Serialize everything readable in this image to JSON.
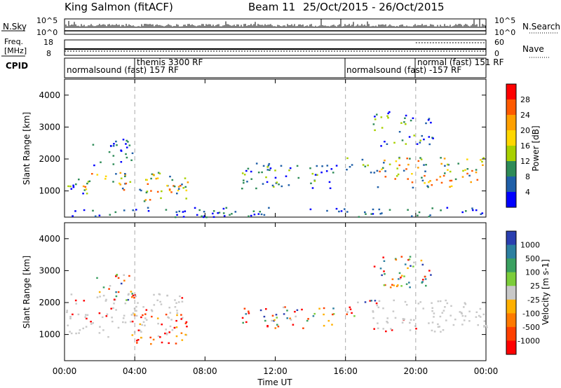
{
  "header": {
    "station": "King Salmon (fitACF)",
    "beam": "Beam 11",
    "dates": "25/Oct/2015 - 26/Oct/2015"
  },
  "noise_panel": {
    "left_label": "N.Sky",
    "right_label": "N.Search",
    "ticks_left": [
      "10^5",
      "10^0"
    ],
    "ticks_right": [
      "10^5",
      "10^0"
    ]
  },
  "freq_panel": {
    "left_label_1": "Freq.",
    "left_label_2": "[MHz]",
    "right_label": "Nave",
    "ticks_left": [
      "18",
      "8"
    ],
    "ticks_right": [
      "60",
      "0"
    ]
  },
  "cpid_panel": {
    "label": "CPID",
    "segments": [
      {
        "text": "normalsound (fast) 157 RF",
        "start_h": 0,
        "end_h": 4
      },
      {
        "text": "themis 3300 RF",
        "start_h": 4,
        "end_h": 16
      },
      {
        "text": "normalsound (fast) -157 RF",
        "start_h": 16,
        "end_h": 20
      },
      {
        "text": "normal (fast) 151 RF",
        "start_h": 20,
        "end_h": 24
      }
    ]
  },
  "colorbars": {
    "power": {
      "label": "Power [dB]",
      "ticks": [
        "28",
        "24",
        "20",
        "16",
        "12",
        "8",
        "4"
      ],
      "colors": [
        "#ff0000",
        "#ff5a00",
        "#ffa000",
        "#ffd700",
        "#a8d000",
        "#2e8b57",
        "#1f5fa8",
        "#0000ff"
      ]
    },
    "velocity": {
      "label": "Velocity [m s-1]",
      "ticks": [
        "1000",
        "500",
        "100",
        "25",
        "-25",
        "-100",
        "-500",
        "-1000"
      ],
      "colors": [
        "#2a3fb0",
        "#2c7fa0",
        "#3aa060",
        "#7ccd3a",
        "#c8c8c8",
        "#ffb000",
        "#ff7a00",
        "#ff4000",
        "#ff0000"
      ]
    }
  },
  "chart_data": {
    "type": "heatmap",
    "x_axis": {
      "label": "Time UT",
      "range_h": [
        0,
        24
      ],
      "ticks": [
        "00:00",
        "04:00",
        "08:00",
        "12:00",
        "16:00",
        "20:00",
        "00:00"
      ]
    },
    "y_axis": {
      "label": "Slant Range [km]",
      "range": [
        180,
        4500
      ],
      "ticks": [
        "1000",
        "2000",
        "3000",
        "4000"
      ]
    },
    "power_echo_regions": [
      {
        "t0": 0.0,
        "t1": 1.5,
        "r0": 850,
        "r1": 1400,
        "level": "mid"
      },
      {
        "t0": 1.0,
        "t1": 7.0,
        "r0": 1000,
        "r1": 1600,
        "level": "high"
      },
      {
        "t0": 1.5,
        "t1": 4.0,
        "r0": 1800,
        "r1": 2800,
        "level": "low"
      },
      {
        "t0": 4.0,
        "t1": 7.0,
        "r0": 700,
        "r1": 1400,
        "level": "high"
      },
      {
        "t0": 10.0,
        "t1": 15.5,
        "r0": 1100,
        "r1": 1900,
        "level": "mid"
      },
      {
        "t0": 16.0,
        "t1": 17.8,
        "r0": 1500,
        "r1": 2100,
        "level": "mid"
      },
      {
        "t0": 17.7,
        "t1": 24.0,
        "r0": 1100,
        "r1": 2100,
        "level": "high"
      },
      {
        "t0": 17.5,
        "t1": 21.0,
        "r0": 2400,
        "r1": 3500,
        "level": "mid"
      },
      {
        "t0": 0.0,
        "t1": 24.0,
        "r0": 200,
        "r1": 500,
        "level": "low"
      }
    ],
    "velocity_echo_regions": [
      {
        "t0": 0.0,
        "t1": 7.0,
        "r0": 900,
        "r1": 2300,
        "class": "ground"
      },
      {
        "t0": 3.8,
        "t1": 7.0,
        "r0": 700,
        "r1": 1700,
        "class": "negative"
      },
      {
        "t0": 1.8,
        "t1": 4.0,
        "r0": 2000,
        "r1": 2900,
        "class": "mixed"
      },
      {
        "t0": 10.0,
        "t1": 15.5,
        "r0": 1200,
        "r1": 1900,
        "class": "mixed"
      },
      {
        "t0": 16.0,
        "t1": 17.8,
        "r0": 1600,
        "r1": 2100,
        "class": "mixed"
      },
      {
        "t0": 17.5,
        "t1": 24.0,
        "r0": 1100,
        "r1": 2100,
        "class": "ground"
      },
      {
        "t0": 17.5,
        "t1": 21.0,
        "r0": 2500,
        "r1": 3500,
        "class": "mixed"
      }
    ]
  }
}
